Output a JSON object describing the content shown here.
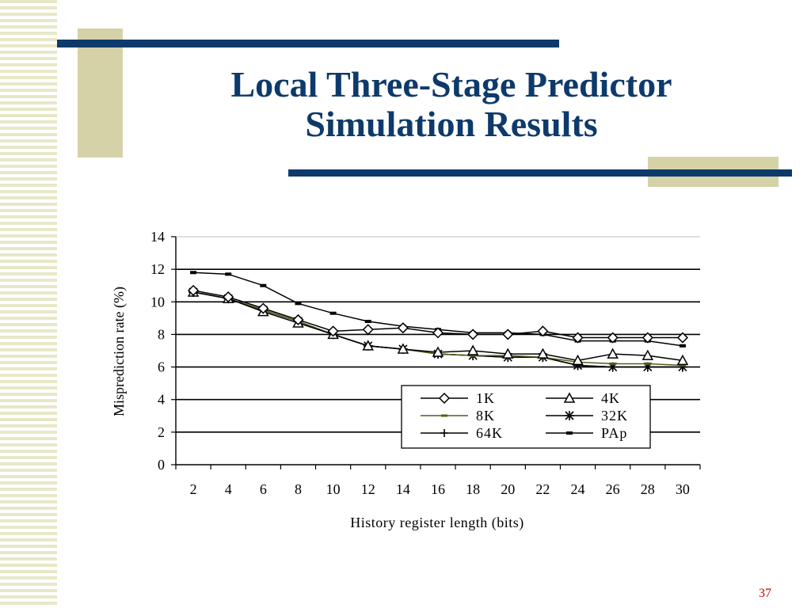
{
  "slide": {
    "title_line1": "Local Three-Stage Predictor",
    "title_line2": "Simulation Results",
    "page_number": "37"
  },
  "chart_data": {
    "type": "line",
    "title": "",
    "xlabel": "History register length (bits)",
    "ylabel": "Misprediction rate (%)",
    "x": [
      2,
      4,
      6,
      8,
      10,
      12,
      14,
      16,
      18,
      20,
      22,
      24,
      26,
      28,
      30
    ],
    "ylim": [
      0,
      14
    ],
    "yticks": [
      0,
      2,
      4,
      6,
      8,
      10,
      12,
      14
    ],
    "grid": true,
    "legend": "bottom-right",
    "series": [
      {
        "name": "1K",
        "marker": "diamond",
        "color": "#000000",
        "values": [
          10.7,
          10.3,
          9.6,
          8.9,
          8.2,
          8.3,
          8.4,
          8.1,
          8.0,
          8.0,
          8.2,
          7.8,
          7.8,
          7.8,
          7.8
        ]
      },
      {
        "name": "4K",
        "marker": "triangle",
        "color": "#000000",
        "values": [
          10.6,
          10.2,
          9.4,
          8.7,
          8.0,
          7.3,
          7.1,
          6.9,
          7.0,
          6.8,
          6.8,
          6.4,
          6.8,
          6.7,
          6.4
        ]
      },
      {
        "name": "8K",
        "marker": "dash",
        "color": "#5a5a1e",
        "values": [
          10.6,
          10.2,
          9.5,
          8.8,
          8.0,
          7.3,
          7.1,
          6.8,
          6.7,
          6.7,
          6.6,
          6.3,
          6.2,
          6.2,
          6.1
        ]
      },
      {
        "name": "32K",
        "marker": "star",
        "color": "#000000",
        "values": [
          10.6,
          10.2,
          9.5,
          8.8,
          8.0,
          7.3,
          7.1,
          6.8,
          6.7,
          6.6,
          6.6,
          6.1,
          6.0,
          6.0,
          6.0
        ]
      },
      {
        "name": "64K",
        "marker": "plus",
        "color": "#000000",
        "values": [
          10.6,
          10.2,
          9.5,
          8.8,
          8.0,
          7.3,
          7.1,
          6.8,
          6.7,
          6.6,
          6.6,
          6.1,
          6.0,
          6.0,
          6.0
        ]
      },
      {
        "name": "PAp",
        "marker": "bar",
        "color": "#000000",
        "values": [
          11.8,
          11.7,
          11.0,
          9.9,
          9.3,
          8.8,
          8.5,
          8.3,
          8.1,
          8.1,
          8.0,
          7.6,
          7.6,
          7.6,
          7.3
        ]
      }
    ]
  }
}
